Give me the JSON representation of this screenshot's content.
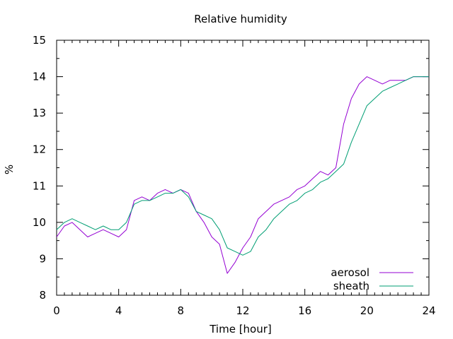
{
  "chart_data": {
    "type": "line",
    "title": "Relative humidity",
    "xlabel": "Time [hour]",
    "ylabel": "%",
    "xlim": [
      0,
      24
    ],
    "ylim": [
      8,
      15
    ],
    "xticks": [
      0,
      4,
      8,
      12,
      16,
      20,
      24
    ],
    "yticks": [
      8,
      9,
      10,
      11,
      12,
      13,
      14,
      15
    ],
    "grid": false,
    "legend_position": "bottom-right",
    "series": [
      {
        "name": "aerosol",
        "color": "#9400d3",
        "x": [
          0,
          0.5,
          1,
          1.5,
          2,
          2.5,
          3,
          3.5,
          4,
          4.5,
          5,
          5.5,
          6,
          6.5,
          7,
          7.5,
          8,
          8.5,
          9,
          9.5,
          10,
          10.5,
          11,
          11.5,
          12,
          12.5,
          13,
          13.5,
          14,
          14.5,
          15,
          15.5,
          16,
          16.5,
          17,
          17.5,
          18,
          18.5,
          19,
          19.5,
          20,
          20.5,
          21,
          21.5,
          22,
          22.5,
          23,
          23.5,
          24
        ],
        "y": [
          9.6,
          9.9,
          10.0,
          9.8,
          9.6,
          9.7,
          9.8,
          9.7,
          9.6,
          9.8,
          10.6,
          10.7,
          10.6,
          10.8,
          10.9,
          10.8,
          10.9,
          10.8,
          10.3,
          10.0,
          9.6,
          9.4,
          8.6,
          8.9,
          9.3,
          9.6,
          10.1,
          10.3,
          10.5,
          10.6,
          10.7,
          10.9,
          11.0,
          11.2,
          11.4,
          11.3,
          11.5,
          12.7,
          13.4,
          13.8,
          14.0,
          13.9,
          13.8,
          13.9,
          13.9,
          13.9,
          14.0,
          14.0,
          14.0
        ]
      },
      {
        "name": "sheath",
        "color": "#009e73",
        "x": [
          0,
          0.5,
          1,
          1.5,
          2,
          2.5,
          3,
          3.5,
          4,
          4.5,
          5,
          5.5,
          6,
          6.5,
          7,
          7.5,
          8,
          8.5,
          9,
          9.5,
          10,
          10.5,
          11,
          11.5,
          12,
          12.5,
          13,
          13.5,
          14,
          14.5,
          15,
          15.5,
          16,
          16.5,
          17,
          17.5,
          18,
          18.5,
          19,
          19.5,
          20,
          20.5,
          21,
          21.5,
          22,
          22.5,
          23,
          23.5,
          24
        ],
        "y": [
          9.8,
          10.0,
          10.1,
          10.0,
          9.9,
          9.8,
          9.9,
          9.8,
          9.8,
          10.0,
          10.5,
          10.6,
          10.6,
          10.7,
          10.8,
          10.8,
          10.9,
          10.7,
          10.3,
          10.2,
          10.1,
          9.8,
          9.3,
          9.2,
          9.1,
          9.2,
          9.6,
          9.8,
          10.1,
          10.3,
          10.5,
          10.6,
          10.8,
          10.9,
          11.1,
          11.2,
          11.4,
          11.6,
          12.2,
          12.7,
          13.2,
          13.4,
          13.6,
          13.7,
          13.8,
          13.9,
          14.0,
          14.0,
          14.0
        ]
      }
    ]
  }
}
